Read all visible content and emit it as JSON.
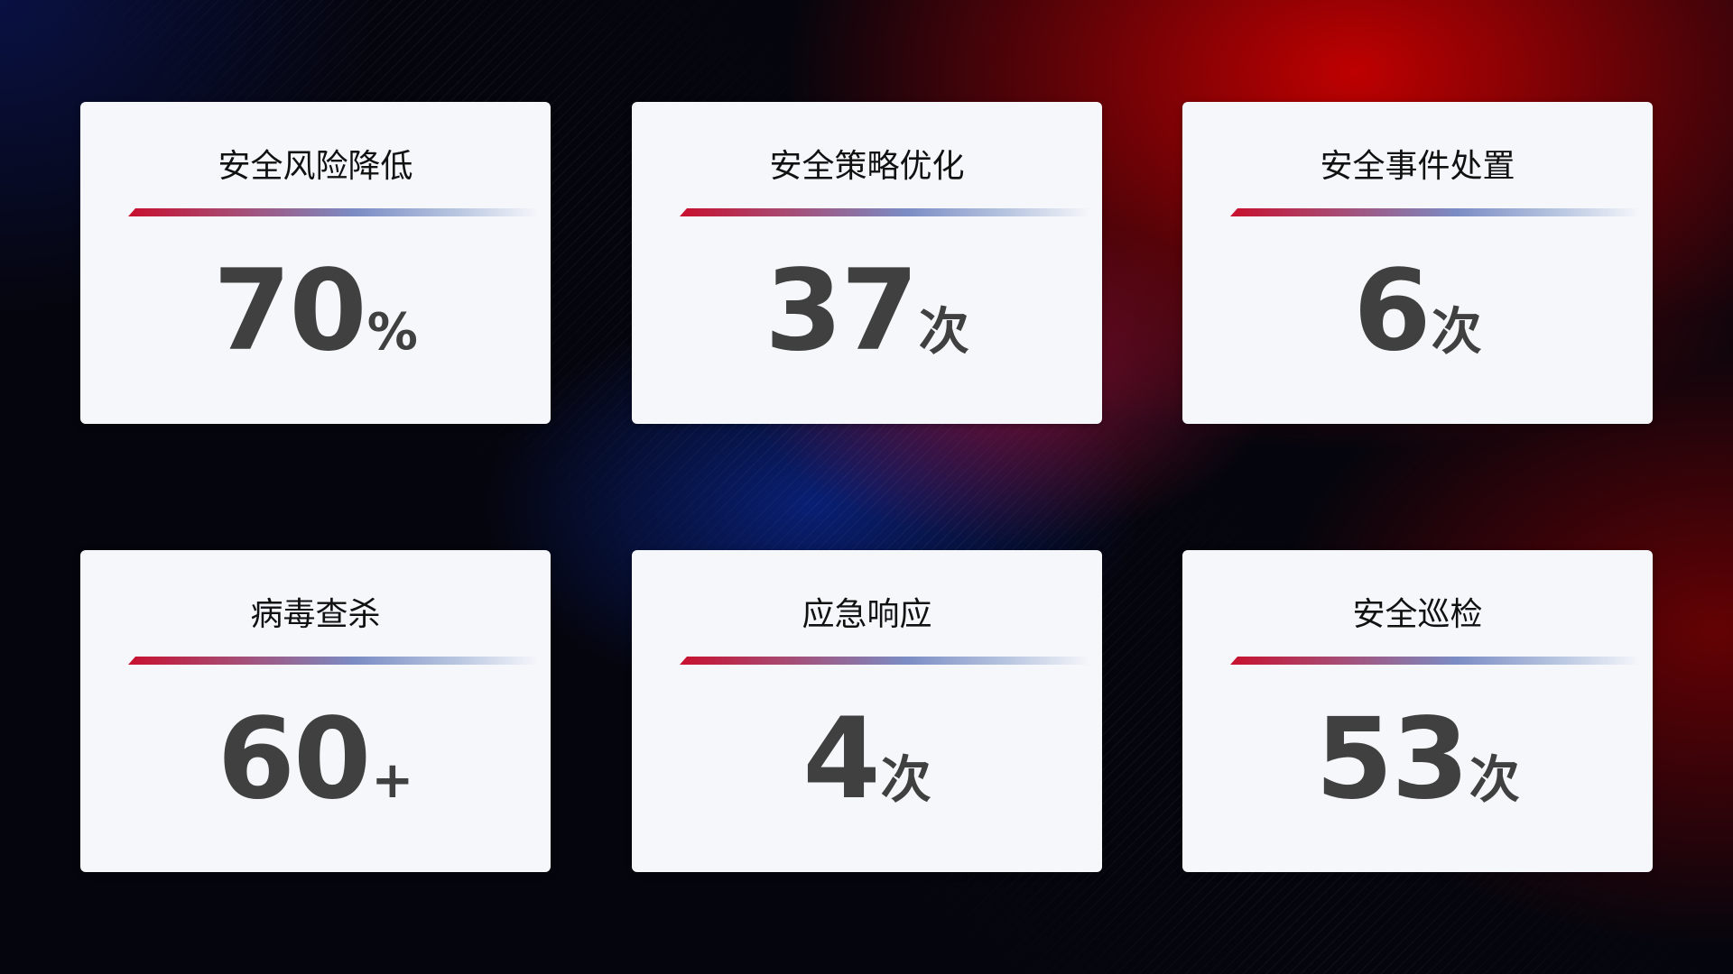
{
  "colors": {
    "accent_red": "#c8102e",
    "accent_blue": "#7b8cc4",
    "card_bg": "#f6f7fb",
    "value_text": "#404040"
  },
  "cards": [
    {
      "title": "安全风险降低",
      "value": "70",
      "suffix": "%"
    },
    {
      "title": "安全策略优化",
      "value": "37",
      "suffix": "次"
    },
    {
      "title": "安全事件处置",
      "value": "6",
      "suffix": "次"
    },
    {
      "title": "病毒查杀",
      "value": "60",
      "suffix": "+"
    },
    {
      "title": "应急响应",
      "value": "4",
      "suffix": "次"
    },
    {
      "title": "安全巡检",
      "value": "53",
      "suffix": "次"
    }
  ]
}
